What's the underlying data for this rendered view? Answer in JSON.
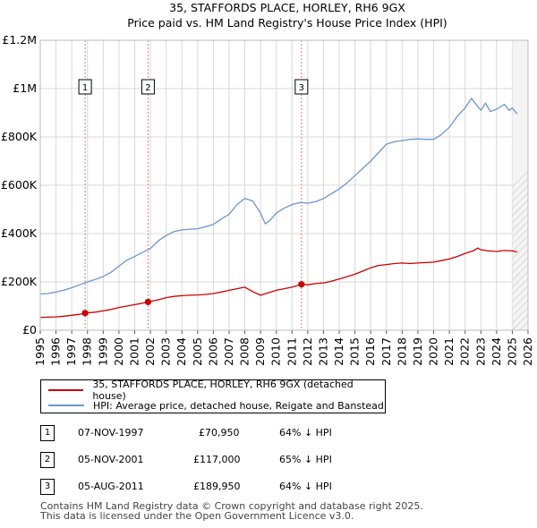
{
  "chart_data": {
    "type": "line",
    "title": "35, STAFFORDS PLACE, HORLEY, RH6 9GX",
    "subtitle": "Price paid vs. HM Land Registry's House Price Index (HPI)",
    "xlim": [
      1995,
      2026
    ],
    "ylim": [
      0,
      1200000
    ],
    "x_ticks": [
      "1995",
      "1996",
      "1997",
      "1998",
      "1999",
      "2000",
      "2001",
      "2002",
      "2003",
      "2004",
      "2005",
      "2006",
      "2007",
      "2008",
      "2009",
      "2010",
      "2011",
      "2012",
      "2013",
      "2014",
      "2015",
      "2016",
      "2017",
      "2018",
      "2019",
      "2020",
      "2021",
      "2022",
      "2023",
      "2024",
      "2025",
      "2026"
    ],
    "y_ticks": [
      {
        "value": 0,
        "label": "£0"
      },
      {
        "value": 200000,
        "label": "£200K"
      },
      {
        "value": 400000,
        "label": "£400K"
      },
      {
        "value": 600000,
        "label": "£600K"
      },
      {
        "value": 800000,
        "label": "£800K"
      },
      {
        "value": 1000000,
        "label": "£1M"
      },
      {
        "value": 1200000,
        "label": "£1.2M"
      }
    ],
    "series": [
      {
        "name": "35, STAFFORDS PLACE, HORLEY, RH6 9GX (detached house)",
        "color": "#cc0000",
        "x": [
          1995.0,
          1995.5,
          1996.0,
          1996.5,
          1997.0,
          1997.5,
          1997.85,
          1998.5,
          1999.0,
          1999.5,
          2000.0,
          2000.5,
          2001.0,
          2001.5,
          2001.85,
          2002.5,
          2003.0,
          2003.5,
          2004.0,
          2004.5,
          2005.0,
          2005.5,
          2006.0,
          2006.5,
          2007.0,
          2007.5,
          2008.0,
          2008.5,
          2009.0,
          2009.5,
          2010.0,
          2010.5,
          2011.0,
          2011.6,
          2012.0,
          2012.5,
          2013.0,
          2013.5,
          2014.0,
          2014.5,
          2015.0,
          2015.5,
          2016.0,
          2016.5,
          2017.0,
          2017.5,
          2018.0,
          2018.5,
          2019.0,
          2019.5,
          2020.0,
          2020.5,
          2021.0,
          2021.5,
          2022.0,
          2022.5,
          2022.8,
          2023.0,
          2023.5,
          2024.0,
          2024.5,
          2025.0,
          2025.3
        ],
        "values": [
          53000,
          54000,
          55000,
          58000,
          62000,
          66000,
          70950,
          75000,
          80000,
          86000,
          94000,
          100000,
          106000,
          112000,
          117000,
          126000,
          135000,
          140000,
          143000,
          145000,
          146000,
          148000,
          152000,
          158000,
          165000,
          172000,
          178000,
          160000,
          145000,
          155000,
          165000,
          172000,
          178000,
          189950,
          188000,
          193000,
          196000,
          203000,
          212000,
          222000,
          232000,
          245000,
          258000,
          268000,
          272000,
          276000,
          278000,
          276000,
          278000,
          280000,
          282000,
          288000,
          295000,
          305000,
          318000,
          328000,
          340000,
          333000,
          328000,
          326000,
          330000,
          328000,
          324000
        ]
      },
      {
        "name": "HPI: Average price, detached house, Reigate and Banstead",
        "color": "#6a96d2",
        "x": [
          1995.0,
          1995.5,
          1996.0,
          1996.5,
          1997.0,
          1997.5,
          1998.0,
          1998.5,
          1999.0,
          1999.5,
          2000.0,
          2000.5,
          2001.0,
          2001.5,
          2002.0,
          2002.5,
          2003.0,
          2003.5,
          2004.0,
          2004.5,
          2005.0,
          2005.5,
          2006.0,
          2006.5,
          2007.0,
          2007.5,
          2008.0,
          2008.5,
          2009.0,
          2009.3,
          2009.6,
          2010.0,
          2010.5,
          2011.0,
          2011.5,
          2012.0,
          2012.5,
          2013.0,
          2013.5,
          2014.0,
          2014.5,
          2015.0,
          2015.5,
          2016.0,
          2016.5,
          2017.0,
          2017.5,
          2018.0,
          2018.5,
          2019.0,
          2019.5,
          2020.0,
          2020.5,
          2021.0,
          2021.5,
          2022.0,
          2022.4,
          2022.7,
          2023.0,
          2023.3,
          2023.6,
          2024.0,
          2024.5,
          2024.8,
          2025.0,
          2025.3
        ],
        "values": [
          150000,
          152000,
          158000,
          166000,
          176000,
          188000,
          200000,
          210000,
          222000,
          240000,
          265000,
          290000,
          305000,
          322000,
          338000,
          370000,
          392000,
          408000,
          415000,
          418000,
          420000,
          428000,
          438000,
          460000,
          480000,
          520000,
          545000,
          535000,
          485000,
          440000,
          455000,
          485000,
          505000,
          520000,
          528000,
          526000,
          532000,
          545000,
          565000,
          585000,
          610000,
          640000,
          670000,
          700000,
          735000,
          770000,
          780000,
          785000,
          790000,
          792000,
          790000,
          790000,
          810000,
          840000,
          885000,
          920000,
          960000,
          935000,
          910000,
          940000,
          905000,
          915000,
          935000,
          910000,
          920000,
          895000
        ]
      }
    ],
    "sales": [
      {
        "marker": "1",
        "x": 1997.85,
        "price": 70950,
        "date": "07-NOV-1997",
        "price_label": "£70,950",
        "hpi": "64% ↓ HPI"
      },
      {
        "marker": "2",
        "x": 2001.85,
        "price": 117000,
        "date": "05-NOV-2001",
        "price_label": "£117,000",
        "hpi": "65% ↓ HPI"
      },
      {
        "marker": "3",
        "x": 2011.6,
        "price": 189950,
        "date": "05-AUG-2011",
        "price_label": "£189,950",
        "hpi": "64% ↓ HPI"
      }
    ]
  },
  "footer": {
    "line1": "Contains HM Land Registry data © Crown copyright and database right 2025.",
    "line2": "This data is licensed under the Open Government Licence v3.0."
  },
  "colors": {
    "property": "#cc0000",
    "hpi": "#6a96d2",
    "grid": "#d8d8d8",
    "plot_bg": "#ffffff"
  }
}
